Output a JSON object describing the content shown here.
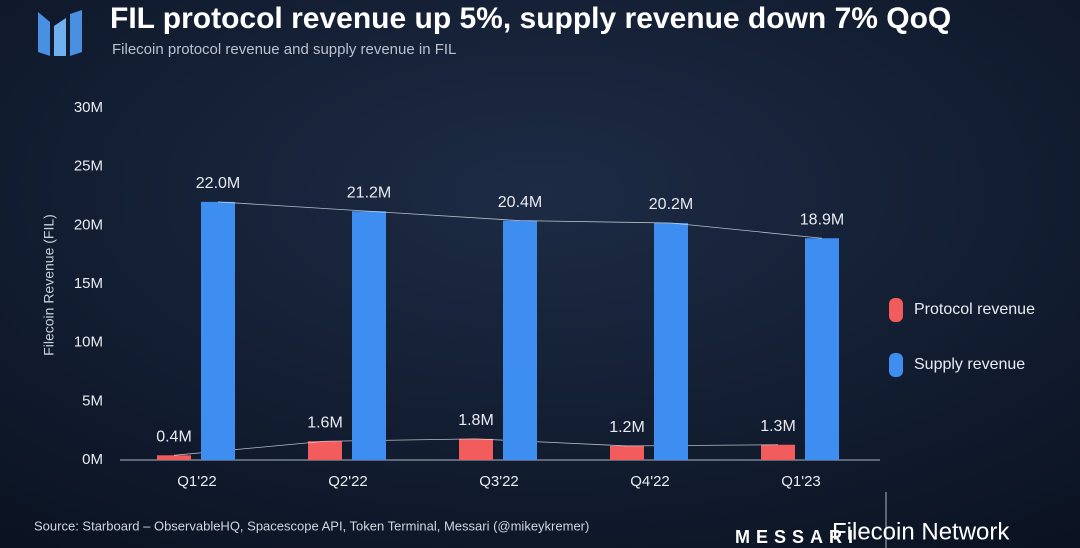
{
  "chart_data": {
    "type": "bar",
    "title": "FIL protocol revenue up 5%, supply revenue down 7% QoQ",
    "subtitle": "Filecoin protocol revenue and supply revenue in FIL",
    "y_label": "Filecoin Revenue (FIL)",
    "categories": [
      "Q1'22",
      "Q2'22",
      "Q3'22",
      "Q4'22",
      "Q1'23"
    ],
    "series": [
      {
        "name": "Protocol revenue",
        "color": "#f25c5c",
        "values": [
          0.4,
          1.6,
          1.8,
          1.2,
          1.3
        ],
        "value_labels": [
          "0.4M",
          "1.6M",
          "1.8M",
          "1.2M",
          "1.3M"
        ]
      },
      {
        "name": "Supply revenue",
        "color": "#3d8ef0",
        "values": [
          22.0,
          21.2,
          20.4,
          20.2,
          18.9
        ],
        "value_labels": [
          "22.0M",
          "21.2M",
          "20.4M",
          "20.2M",
          "18.9M"
        ]
      }
    ],
    "ylim": [
      0,
      30
    ],
    "yticks": [
      {
        "value": 0,
        "label": "0M"
      },
      {
        "value": 5,
        "label": "5M"
      },
      {
        "value": 10,
        "label": "10M"
      },
      {
        "value": 15,
        "label": "15M"
      },
      {
        "value": 20,
        "label": "20M"
      },
      {
        "value": 25,
        "label": "25M"
      },
      {
        "value": 30,
        "label": "30M"
      }
    ],
    "grid": false,
    "legend": "right",
    "source": "Source: Starboard – ObservableHQ, Spacescope API, Token Terminal, Messari (@mikeykremer)",
    "brand": "MESSARI",
    "watermark": "Filecoin Network"
  }
}
